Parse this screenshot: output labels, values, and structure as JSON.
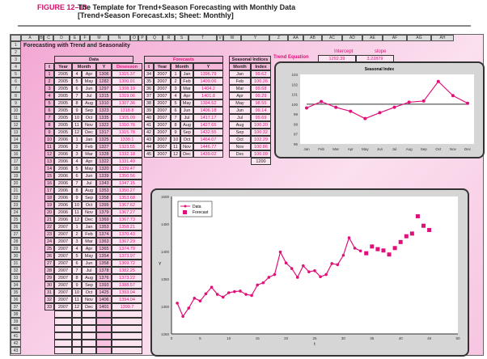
{
  "figure": {
    "label": "FIGURE 12–13",
    "title": "The Template for Trend+Season Forecasting with Monthly Data",
    "subtitle": "[Trend+Season Forecast.xls; Sheet: Monthly]"
  },
  "sheet": {
    "title": "Forecasting with Trend and Seasonality",
    "columns": [
      "A",
      "B",
      "C",
      "D",
      "E",
      "F",
      "M",
      "N",
      "O",
      "P",
      "Q",
      "R",
      "S",
      "T",
      "V",
      "W",
      "Y",
      "Z",
      "AA",
      "AB",
      "AC",
      "AD",
      "AE",
      "AF",
      "AG",
      "AH"
    ],
    "trend": {
      "label": "Trend Equation",
      "intercept_label": "Intercept",
      "slope_label": "slope",
      "intercept": "1292.39",
      "slope": "3.22879"
    },
    "data": {
      "title": "Data",
      "headers": [
        "t",
        "Year",
        "Month",
        "Y",
        "Desesson"
      ],
      "rows": [
        [
          "1",
          "2005",
          "4",
          "Apr",
          "1306",
          "1315.37"
        ],
        [
          "2",
          "2005",
          "5",
          "May",
          "1282",
          "1300.91"
        ],
        [
          "3",
          "2005",
          "6",
          "Jun",
          "1297",
          "1308.19"
        ],
        [
          "4",
          "2005",
          "7",
          "Jul",
          "1315",
          "1319.06"
        ],
        [
          "5",
          "2005",
          "8",
          "Aug",
          "1310",
          "1307.36"
        ],
        [
          "6",
          "2005",
          "9",
          "Sep",
          "1323",
          "1318.8"
        ],
        [
          "7",
          "2005",
          "10",
          "Oct",
          "1335",
          "1305.09"
        ],
        [
          "8",
          "2005",
          "11",
          "Nov",
          "1322",
          "1310.76"
        ],
        [
          "9",
          "2005",
          "12",
          "Dec",
          "1317",
          "1315.78"
        ],
        [
          "10",
          "2006",
          "1",
          "Jan",
          "1325",
          "1330.1"
        ],
        [
          "11",
          "2006",
          "2",
          "Feb",
          "1327",
          "1323.55"
        ],
        [
          "12",
          "2006",
          "3",
          "Mar",
          "1328",
          "1332.18"
        ],
        [
          "13",
          "2006",
          "4",
          "Apr",
          "1322",
          "1331.49"
        ],
        [
          "14",
          "2006",
          "5",
          "May",
          "1320",
          "1339.47"
        ],
        [
          "15",
          "2006",
          "6",
          "Jun",
          "1339",
          "1350.56"
        ],
        [
          "16",
          "2006",
          "7",
          "Jul",
          "1343",
          "1347.15"
        ],
        [
          "17",
          "2006",
          "8",
          "Aug",
          "1353",
          "1350.27"
        ],
        [
          "18",
          "2006",
          "9",
          "Sep",
          "1358",
          "1353.68"
        ],
        [
          "19",
          "2006",
          "10",
          "Oct",
          "1399",
          "1367.62"
        ],
        [
          "20",
          "2006",
          "11",
          "Nov",
          "1379",
          "1367.27"
        ],
        [
          "21",
          "2006",
          "12",
          "Dec",
          "1369",
          "1367.73"
        ],
        [
          "22",
          "2007",
          "1",
          "Jan",
          "1353",
          "1358.21"
        ],
        [
          "23",
          "2007",
          "2",
          "Feb",
          "1374",
          "1370.43"
        ],
        [
          "24",
          "2007",
          "3",
          "Mar",
          "1363",
          "1367.29"
        ],
        [
          "25",
          "2007",
          "4",
          "Apr",
          "1365",
          "1374.79"
        ],
        [
          "26",
          "2007",
          "5",
          "May",
          "1354",
          "1373.97"
        ],
        [
          "27",
          "2007",
          "6",
          "Jun",
          "1358",
          "1369.72"
        ],
        [
          "28",
          "2007",
          "7",
          "Jul",
          "1378",
          "1382.25"
        ],
        [
          "29",
          "2007",
          "8",
          "Aug",
          "1376",
          "1373.22"
        ],
        [
          "30",
          "2007",
          "9",
          "Sep",
          "1393",
          "1388.57"
        ],
        [
          "31",
          "2007",
          "10",
          "Oct",
          "1425",
          "1393.04"
        ],
        [
          "32",
          "2007",
          "11",
          "Nov",
          "1406",
          "1394.04"
        ],
        [
          "33",
          "2007",
          "12",
          "Dec",
          "1401",
          "1399.7"
        ]
      ]
    },
    "forecasts": {
      "title": "Forecasts",
      "headers": [
        "t",
        "Year",
        "Month",
        "Y"
      ],
      "rows": [
        [
          "34",
          "2007",
          "1",
          "Jan",
          "1396.79"
        ],
        [
          "35",
          "2007",
          "2",
          "Feb",
          "1409.06"
        ],
        [
          "36",
          "2007",
          "3",
          "Mar",
          "1404.2"
        ],
        [
          "37",
          "2007",
          "4",
          "Apr",
          "1401.8"
        ],
        [
          "38",
          "2007",
          "5",
          "May",
          "1394.52"
        ],
        [
          "39",
          "2007",
          "6",
          "Jun",
          "1406.18"
        ],
        [
          "40",
          "2007",
          "7",
          "Jul",
          "1417.17"
        ],
        [
          "41",
          "2007",
          "8",
          "Aug",
          "1427.65"
        ],
        [
          "42",
          "2007",
          "9",
          "Sep",
          "1432.55"
        ],
        [
          "43",
          "2007",
          "10",
          "Oct",
          "1464.07"
        ],
        [
          "44",
          "2007",
          "11",
          "Nov",
          "1446.77"
        ],
        [
          "45",
          "2007",
          "12",
          "Dec",
          "1439.02"
        ]
      ]
    },
    "seasonal": {
      "title": "Seasonal Indices",
      "headers": [
        "Month",
        "Index"
      ],
      "rows": [
        [
          "Jan",
          "99.62"
        ],
        [
          "Feb",
          "100.26"
        ],
        [
          "Mar",
          "99.68"
        ],
        [
          "Apr",
          "99.29"
        ],
        [
          "May",
          "98.55"
        ],
        [
          "Jun",
          "99.14"
        ],
        [
          "Jul",
          "99.69"
        ],
        [
          "Aug",
          "100.20"
        ],
        [
          "Sep",
          "100.32"
        ],
        [
          "Oct",
          "102.29"
        ],
        [
          "Nov",
          "100.86"
        ],
        [
          "Dec",
          "100.09"
        ]
      ],
      "total": "1200"
    }
  },
  "chart_data": [
    {
      "type": "line",
      "title": "Seasonal Index",
      "categories": [
        "Jan",
        "Feb",
        "Mar",
        "Apr",
        "May",
        "Jun",
        "Jul",
        "Aug",
        "Sep",
        "Oct",
        "Nov",
        "Dec"
      ],
      "values": [
        99.62,
        100.26,
        99.68,
        99.29,
        98.55,
        99.14,
        99.69,
        100.2,
        100.32,
        102.29,
        100.86,
        100.09
      ],
      "reference": 100,
      "ylim": [
        96,
        103
      ],
      "yticks": [
        "96",
        "97",
        "98",
        "99",
        "100",
        "101",
        "102",
        "103"
      ],
      "color": "#e0107a"
    },
    {
      "type": "line",
      "xlabel": "t",
      "ylabel": "Y",
      "xlim": [
        0,
        50
      ],
      "ylim": [
        1250,
        1500
      ],
      "xticks": [
        "0",
        "5",
        "10",
        "15",
        "20",
        "25",
        "30",
        "35",
        "40",
        "45",
        "50"
      ],
      "yticks": [
        "1250",
        "1300",
        "1350",
        "1400",
        "1450",
        "1500"
      ],
      "legend": "top-left",
      "series": [
        {
          "name": "Data",
          "x_start": 1,
          "values": [
            1306,
            1282,
            1297,
            1315,
            1310,
            1323,
            1335,
            1322,
            1317,
            1325,
            1327,
            1328,
            1322,
            1320,
            1339,
            1343,
            1353,
            1358,
            1399,
            1379,
            1369,
            1353,
            1374,
            1363,
            1365,
            1354,
            1358,
            1378,
            1376,
            1393,
            1425,
            1406,
            1401
          ]
        },
        {
          "name": "Forecast",
          "x_start": 34,
          "values": [
            1396.79,
            1409.06,
            1404.2,
            1401.8,
            1394.52,
            1406.18,
            1417.17,
            1427.65,
            1432.55,
            1464.07,
            1446.77,
            1439.02
          ]
        }
      ]
    }
  ]
}
